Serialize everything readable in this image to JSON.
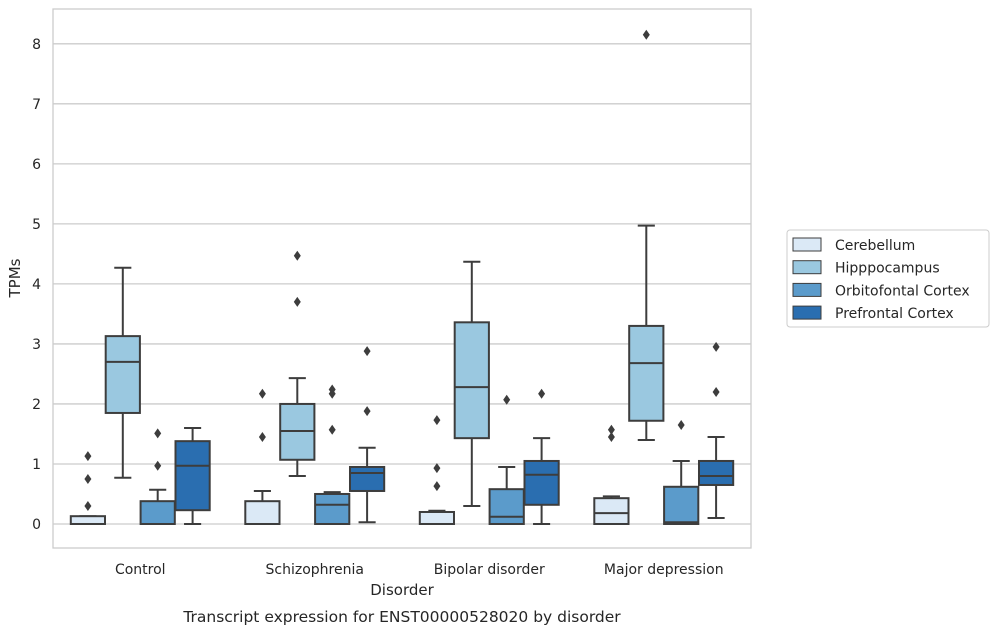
{
  "chart_data": {
    "type": "box",
    "xlabel": "Disorder",
    "ylabel": "TPMs",
    "caption": "Transcript expression for ENST00000528020 by disorder",
    "categories": [
      "Control",
      "Schizophrenia",
      "Bipolar disorder",
      "Major depression"
    ],
    "ylim": [
      -0.4,
      8.58
    ],
    "yticks": [
      0,
      1,
      2,
      3,
      4,
      5,
      6,
      7,
      8
    ],
    "grid": true,
    "legend_position": "right",
    "series": [
      {
        "name": "Cerebellum",
        "color": "#dbe9f6",
        "boxes": [
          {
            "whislo": 0,
            "q1": 0,
            "med": 0,
            "q3": 0.13,
            "whishi": 0.13,
            "fliers": [
              0.3,
              0.75,
              1.13
            ]
          },
          {
            "whislo": 0,
            "q1": 0,
            "med": 0,
            "q3": 0.38,
            "whishi": 0.55,
            "fliers": [
              1.45,
              2.17
            ]
          },
          {
            "whislo": 0,
            "q1": 0,
            "med": 0,
            "q3": 0.2,
            "whishi": 0.22,
            "fliers": [
              0.63,
              0.93,
              1.73
            ]
          },
          {
            "whislo": 0,
            "q1": 0,
            "med": 0.18,
            "q3": 0.43,
            "whishi": 0.46,
            "fliers": [
              1.45,
              1.57
            ]
          }
        ]
      },
      {
        "name": "Hipppocampus",
        "color": "#9ac8e0",
        "boxes": [
          {
            "whislo": 0.77,
            "q1": 1.85,
            "med": 2.7,
            "q3": 3.13,
            "whishi": 4.27,
            "fliers": []
          },
          {
            "whislo": 0.8,
            "q1": 1.07,
            "med": 1.55,
            "q3": 2.0,
            "whishi": 2.43,
            "fliers": [
              3.7,
              4.47
            ]
          },
          {
            "whislo": 0.3,
            "q1": 1.43,
            "med": 2.28,
            "q3": 3.36,
            "whishi": 4.37,
            "fliers": []
          },
          {
            "whislo": 1.4,
            "q1": 1.72,
            "med": 2.68,
            "q3": 3.3,
            "whishi": 4.97,
            "fliers": [
              8.15
            ]
          }
        ]
      },
      {
        "name": "Orbitofontal Cortex",
        "color": "#5b9bcb",
        "boxes": [
          {
            "whislo": 0,
            "q1": 0,
            "med": 0,
            "q3": 0.38,
            "whishi": 0.57,
            "fliers": [
              0.97,
              1.51
            ]
          },
          {
            "whislo": 0,
            "q1": 0,
            "med": 0.32,
            "q3": 0.5,
            "whishi": 0.53,
            "fliers": [
              1.57,
              2.17,
              2.24
            ]
          },
          {
            "whislo": 0,
            "q1": 0,
            "med": 0.12,
            "q3": 0.58,
            "whishi": 0.95,
            "fliers": [
              2.07
            ]
          },
          {
            "whislo": 0,
            "q1": 0,
            "med": 0.03,
            "q3": 0.62,
            "whishi": 1.05,
            "fliers": [
              1.65
            ]
          }
        ]
      },
      {
        "name": "Prefrontal Cortex",
        "color": "#2a6eb0",
        "boxes": [
          {
            "whislo": 0,
            "q1": 0.23,
            "med": 0.97,
            "q3": 1.38,
            "whishi": 1.6,
            "fliers": []
          },
          {
            "whislo": 0.03,
            "q1": 0.55,
            "med": 0.85,
            "q3": 0.95,
            "whishi": 1.27,
            "fliers": [
              1.88,
              2.88
            ]
          },
          {
            "whislo": 0,
            "q1": 0.32,
            "med": 0.82,
            "q3": 1.05,
            "whishi": 1.43,
            "fliers": [
              2.17
            ]
          },
          {
            "whislo": 0.1,
            "q1": 0.65,
            "med": 0.8,
            "q3": 1.05,
            "whishi": 1.45,
            "fliers": [
              2.2,
              2.95
            ]
          }
        ]
      }
    ]
  }
}
